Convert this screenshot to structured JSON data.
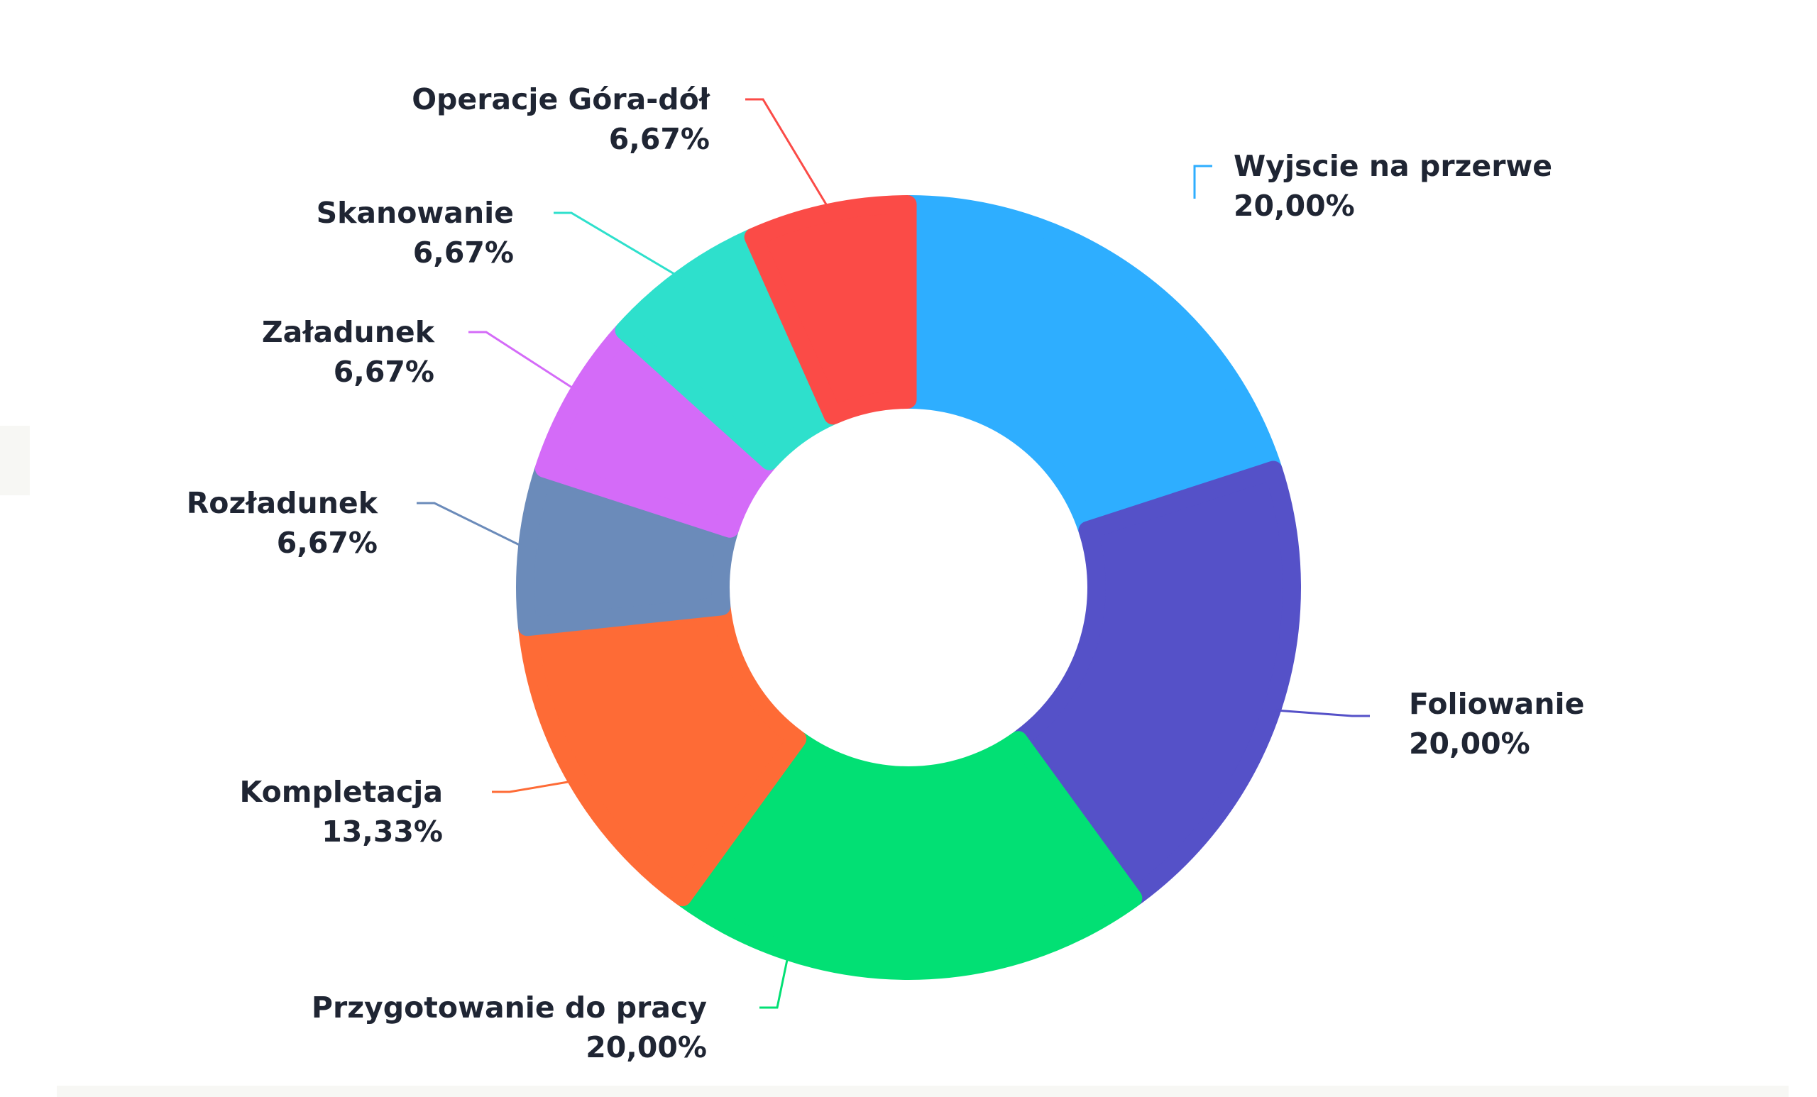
{
  "chart_data": {
    "type": "pie",
    "donut": true,
    "legend": "none",
    "slices": [
      {
        "label": "Wyjscie na przerwe",
        "value": 20.0,
        "value_label": "20,00%",
        "color": "#2eaeff"
      },
      {
        "label": "Foliowanie",
        "value": 20.0,
        "value_label": "20,00%",
        "color": "#5551c8"
      },
      {
        "label": "Przygotowanie do pracy",
        "value": 20.0,
        "value_label": "20,00%",
        "color": "#02e074"
      },
      {
        "label": "Kompletacja",
        "value": 13.33,
        "value_label": "13,33%",
        "color": "#fe6b36"
      },
      {
        "label": "Rozładunek",
        "value": 6.67,
        "value_label": "6,67%",
        "color": "#6b8bba"
      },
      {
        "label": "Załadunek",
        "value": 6.67,
        "value_label": "6,67%",
        "color": "#d46bf8"
      },
      {
        "label": "Skanowanie",
        "value": 6.67,
        "value_label": "6,67%",
        "color": "#2ee0cc"
      },
      {
        "label": "Operacje Góra-dół",
        "value": 6.67,
        "value_label": "6,67%",
        "color": "#fb4b47"
      }
    ]
  }
}
